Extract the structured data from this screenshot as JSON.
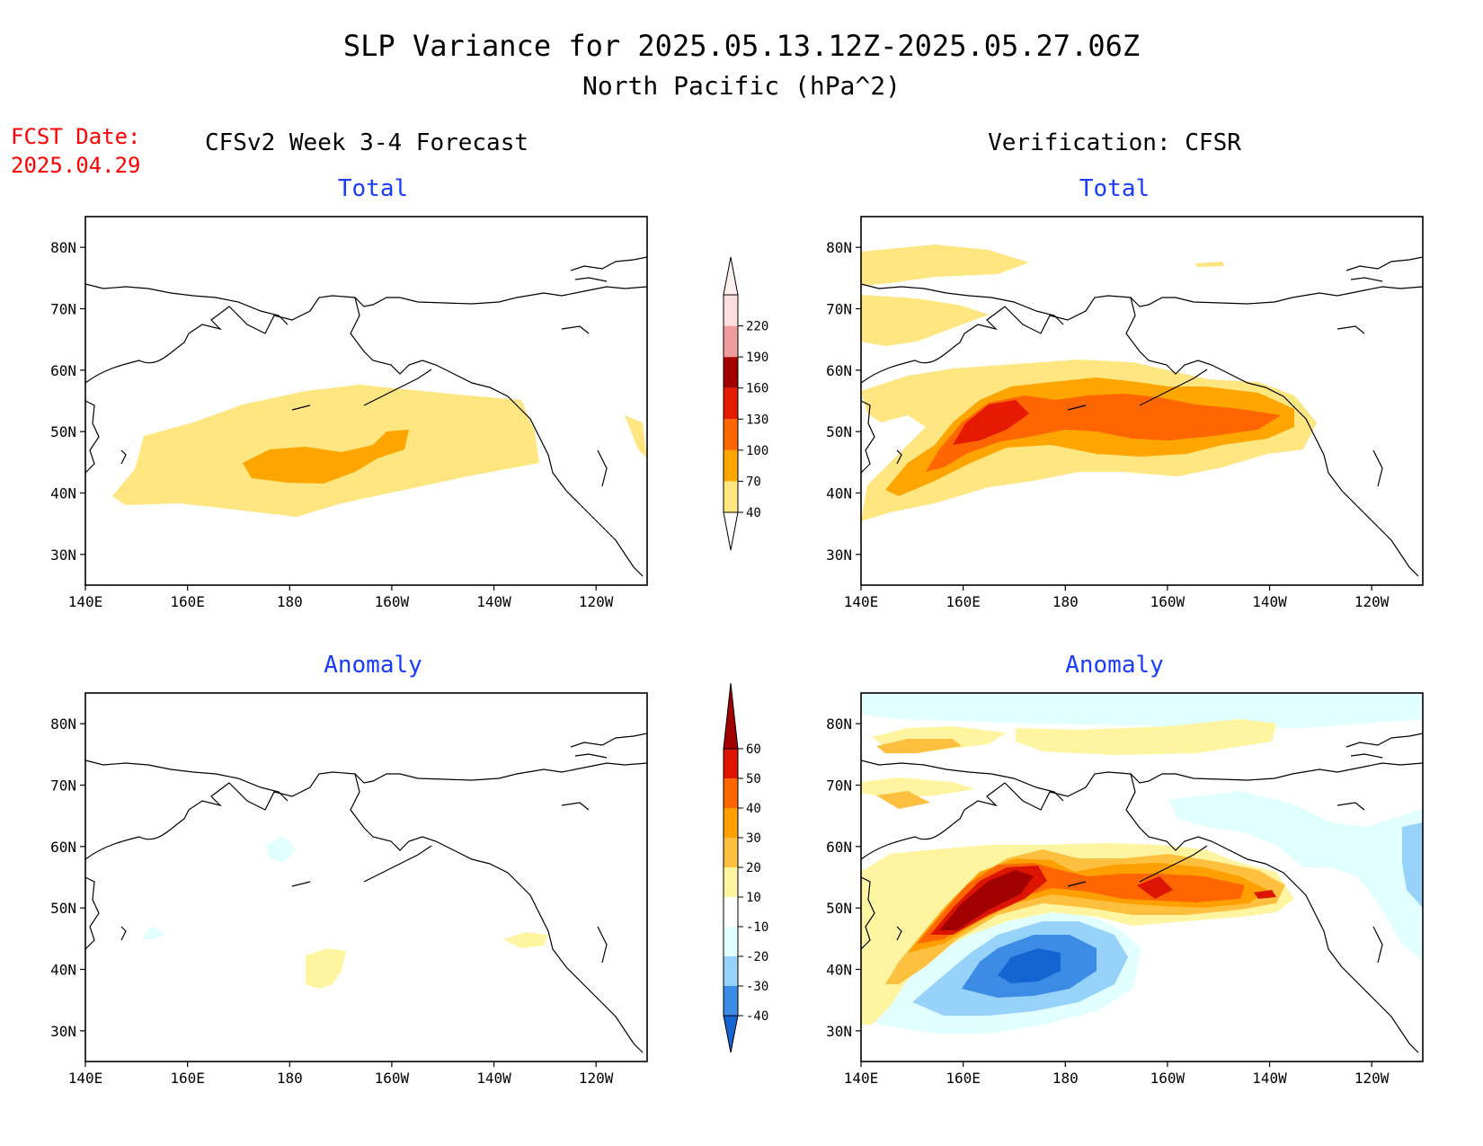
{
  "header": {
    "title_line1": "SLP Variance for 2025.05.13.12Z-2025.05.27.06Z",
    "title_line2": "North Pacific (hPa^2)",
    "fcst_label": "FCST Date:",
    "fcst_date": "2025.04.29",
    "left_heading": "CFSv2 Week 3-4 Forecast",
    "right_heading": "Verification: CFSR"
  },
  "panels": [
    {
      "id": "fcst-total",
      "title": "Total"
    },
    {
      "id": "verif-total",
      "title": "Total"
    },
    {
      "id": "fcst-anomaly",
      "title": "Anomaly"
    },
    {
      "id": "verif-anomaly",
      "title": "Anomaly"
    }
  ],
  "axes": {
    "lon_labels": [
      "140E",
      "160E",
      "180",
      "160W",
      "140W",
      "120W"
    ],
    "lat_labels": [
      "80N",
      "70N",
      "60N",
      "50N",
      "40N",
      "30N"
    ],
    "lon_range_deg_east": [
      140,
      250
    ],
    "lat_range": [
      25,
      85
    ]
  },
  "colorbars": {
    "total": {
      "levels": [
        "40",
        "70",
        "100",
        "130",
        "160",
        "190",
        "220"
      ],
      "colors": [
        "#ffe680",
        "#ffa500",
        "#ff6600",
        "#e61a00",
        "#a50000",
        "#f09c9c",
        "#fddede"
      ]
    },
    "anomaly": {
      "levels": [
        "-40",
        "-30",
        "-20",
        "-10",
        "10",
        "20",
        "30",
        "40",
        "50",
        "60"
      ],
      "colors": [
        "#1464d2",
        "#3c8ce6",
        "#96d2fa",
        "#e1ffff",
        "#ffffff",
        "#fff5a0",
        "#ffc040",
        "#ffa000",
        "#ff6600",
        "#dc1400",
        "#a00000"
      ]
    }
  }
}
